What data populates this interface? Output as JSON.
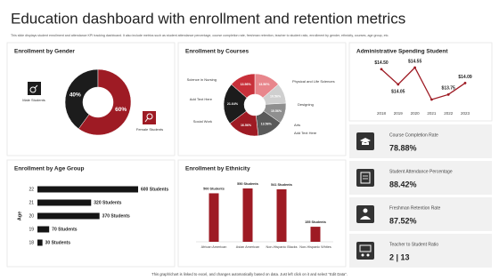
{
  "title": "Education dashboard with enrollment and retention metrics",
  "subtitle": "This slide displays student enrollment and attendance KPI tracking dashboard. It also include metrics such as student attendance percentage, course completion rate, freshman retention, teacher to student ratio, enrollment by gender, ethnicity, courses, age group, etc.",
  "footer": "This graph/chart is linked to excel, and changes automatically based on data. Just left click on it and select \"Edit Data\".",
  "chart_data": [
    {
      "type": "pie",
      "title": "Enrollment by Gender",
      "categories": [
        "Male Students",
        "Female Students"
      ],
      "values": [
        40,
        60
      ],
      "value_labels": [
        "40%",
        "60%"
      ],
      "colors": [
        "#1c1c1c",
        "#9e1b24"
      ]
    },
    {
      "type": "pie",
      "title": "Enrollment by Courses",
      "categories": [
        "Physical and Life Sciences",
        "Designing",
        "Arts",
        "Add Text Here",
        "Social Work",
        "Add Text Here",
        "Science in Nursing"
      ],
      "values": [
        13.56,
        10.56,
        10.56,
        13.56,
        16.56,
        21.64,
        13.56
      ],
      "value_labels": [
        "13.56%",
        "10.56%",
        "10.56%",
        "13.56%",
        "16.56%",
        "21.64%",
        "13.56%"
      ],
      "colors": [
        "#e8868c",
        "#cfcfcf",
        "#8f8f8f",
        "#5a5a5a",
        "#9e1b24",
        "#1c1c1c",
        "#c8303a"
      ]
    },
    {
      "type": "line",
      "title": "Administrative Spending Student",
      "categories": [
        "2018",
        "2019",
        "2020",
        "2021",
        "2022",
        "2023"
      ],
      "values": [
        14.5,
        14.05,
        14.55,
        13.6,
        13.75,
        14.09
      ],
      "value_labels": [
        "$14.50",
        "$14.05",
        "$14.55",
        null,
        "$13.75",
        "$14.09"
      ],
      "color": "#9e1b24"
    },
    {
      "type": "hbar",
      "title": "Enrollment by Age Group",
      "ylabel": "Age",
      "categories": [
        "22",
        "21",
        "20",
        "19",
        "18"
      ],
      "values": [
        600,
        320,
        370,
        70,
        30
      ],
      "value_labels": [
        "600 Students",
        "320 Students",
        "370 Students",
        "70 Students",
        "30 Students"
      ],
      "color": "#151515"
    },
    {
      "type": "bar",
      "title": "Enrollment by Ethnicity",
      "categories": [
        "African American",
        "Asian American",
        "Non-Hispanic Blacks",
        "Non-Hispanic Whites"
      ],
      "values": [
        500,
        550,
        541,
        155
      ],
      "value_labels": [
        "500 Students",
        "550 Students",
        "541 Students",
        "155 Students"
      ],
      "color": "#9e1b24"
    }
  ],
  "kpis": [
    {
      "label": "Course Completion Rate",
      "value": "78.88%"
    },
    {
      "label": "Student Attendance Percentage",
      "value": "88.42%"
    },
    {
      "label": "Freshman Retention Rate",
      "value": "87.52%"
    },
    {
      "label": "Teacher to Student Ratio",
      "value": "2 | 13"
    }
  ]
}
